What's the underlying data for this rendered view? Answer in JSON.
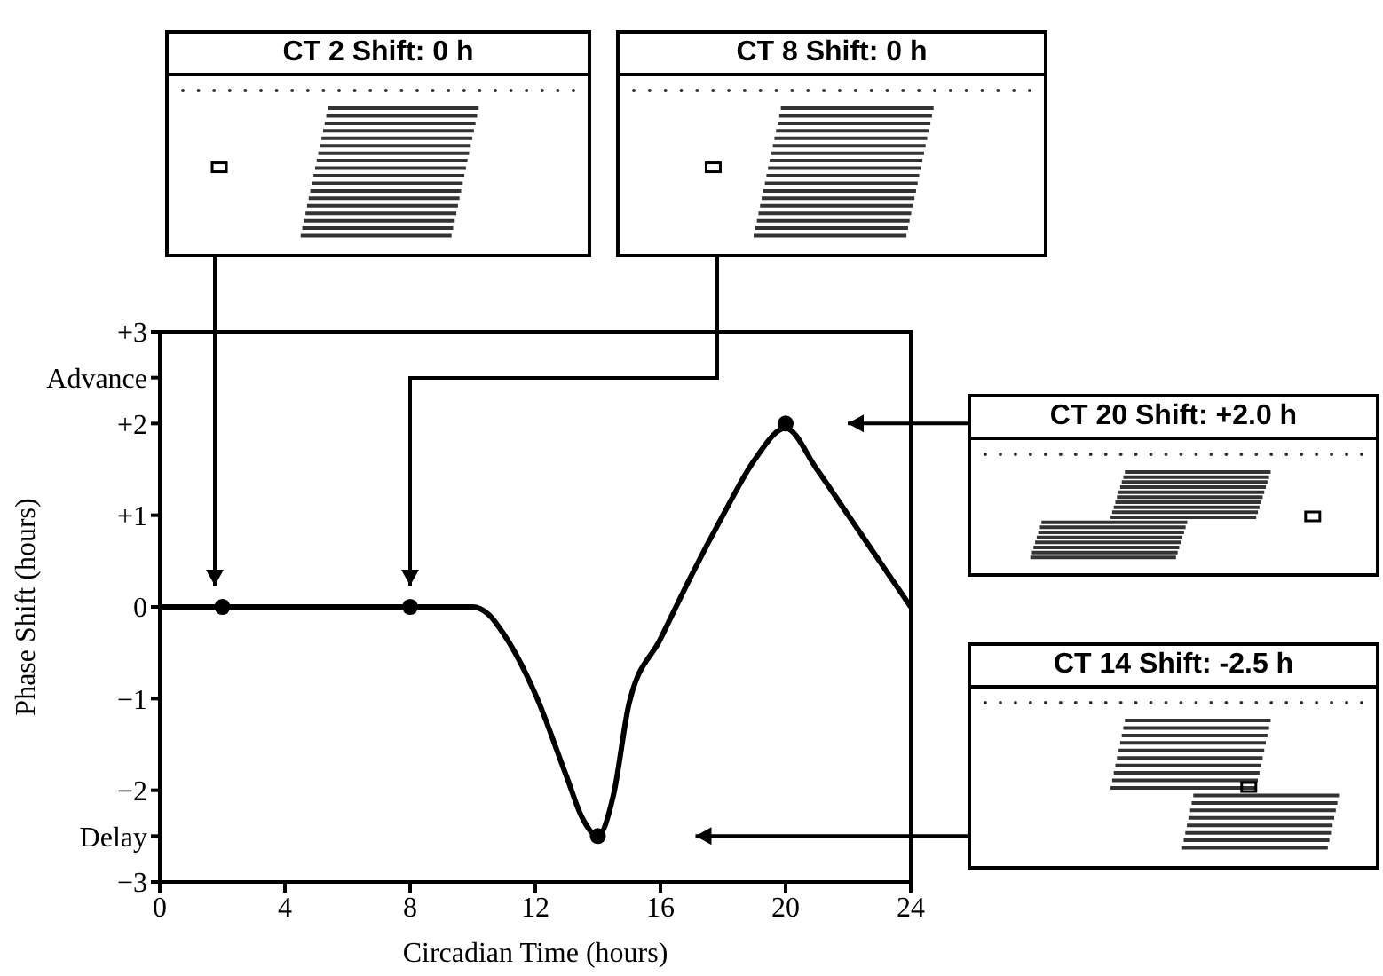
{
  "chart_data": {
    "type": "line",
    "xlabel": "Circadian Time (hours)",
    "ylabel": "Phase Shift (hours)",
    "xlim": [
      0,
      24
    ],
    "xticks": [
      0,
      4,
      8,
      12,
      16,
      20,
      24
    ],
    "ylim": [
      -3,
      3
    ],
    "yticks": [
      {
        "value": 3,
        "label": "+3"
      },
      {
        "value": 2.5,
        "label": "Advance"
      },
      {
        "value": 2,
        "label": "+2"
      },
      {
        "value": 1,
        "label": "+1"
      },
      0,
      {
        "value": -1,
        "label": "−1"
      },
      {
        "value": -2,
        "label": "−2"
      },
      {
        "value": -2.5,
        "label": "Delay"
      },
      {
        "value": -3,
        "label": "−3"
      }
    ],
    "grid": false,
    "legend": false,
    "series": [
      {
        "color": "#000000",
        "marker": "none",
        "x": [
          0,
          2,
          8,
          10,
          10.5,
          11,
          12,
          13,
          13.5,
          14,
          14.5,
          15,
          16,
          17,
          18,
          19,
          20,
          21,
          22,
          23,
          24
        ],
        "values": [
          0,
          0,
          0,
          0,
          -0.08,
          -0.3,
          -0.95,
          -1.85,
          -2.3,
          -2.5,
          -2.05,
          -1.05,
          -0.35,
          0.35,
          1.0,
          1.6,
          1.95,
          1.5,
          1.0,
          0.5,
          0
        ]
      },
      {
        "type": "scatter",
        "color": "#000000",
        "marker": "circle",
        "x": [
          2,
          8,
          14,
          20
        ],
        "values": [
          0,
          0,
          -2.5,
          2
        ]
      }
    ],
    "annotations": [
      "CT 2 Shift: 0 h",
      "CT 8 Shift: 0 h",
      "CT 20 Shift: +2.0 h",
      "CT 14 Shift: -2.5 h"
    ]
  }
}
